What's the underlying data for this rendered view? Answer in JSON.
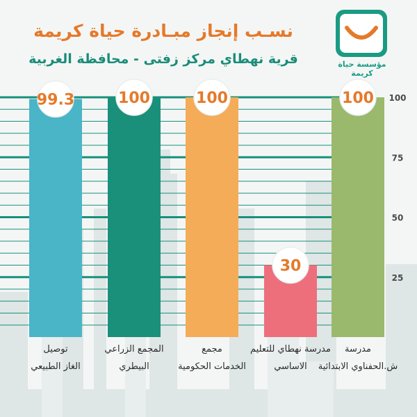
{
  "header": {
    "title": "نسـب إنجاز مبـادرة حياة كريمة",
    "subtitle": "قرية نهطاي مركز زفتى - محافظة الغربية"
  },
  "logo": {
    "text": "مؤسسة حياة كريمة",
    "color": "#1a9b83"
  },
  "chart_data": {
    "type": "bar",
    "title": "نسـب إنجاز مبـادرة حياة كريمة",
    "subtitle": "قرية نهطاي مركز زفتى - محافظة الغربية",
    "ylim": [
      0,
      100
    ],
    "yticks": [
      25,
      50,
      75,
      100
    ],
    "grid": true,
    "categories": [
      "توصيل\nالغاز الطبيعي",
      "المجمع الزراعي\nالبيطري",
      "مجمع\nالخدمات الحكومية",
      "مدرسة نهطاي للتعليم\nالاساسي",
      "مدرسة\nش.الحفناوي الابتدائية"
    ],
    "values": [
      99.3,
      100,
      100,
      30,
      100
    ],
    "value_labels": [
      "99.3",
      "100",
      "100",
      "30",
      "100"
    ],
    "colors": [
      "#4ab5c7",
      "#1a8f7a",
      "#f4ac58",
      "#ee6f7c",
      "#9ab96c"
    ]
  },
  "colors": {
    "grid_line": "#17907b",
    "value_text": "#e47a2b",
    "title_main": "#e47a2b",
    "title_sub": "#1a8d78"
  }
}
